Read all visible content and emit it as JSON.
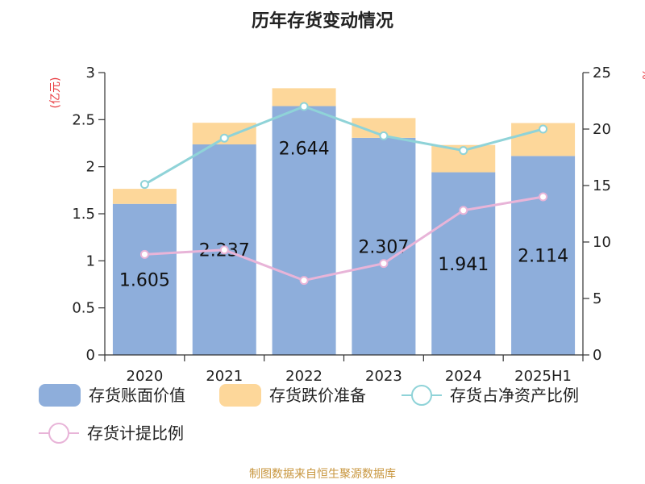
{
  "chart_data": {
    "type": "bar",
    "title": "历年存货变动情况",
    "categories": [
      "2020",
      "2021",
      "2022",
      "2023",
      "2024",
      "2025H1"
    ],
    "y_left_unit": "(亿元)",
    "y_right_unit": "%",
    "ylim_left": [
      0,
      3
    ],
    "ylim_right": [
      0,
      25
    ],
    "yticks_left": [
      "0",
      "0.5",
      "1",
      "1.5",
      "2",
      "2.5",
      "3"
    ],
    "yticks_right": [
      "0",
      "5",
      "10",
      "15",
      "20",
      "25"
    ],
    "series": [
      {
        "name": "存货账面价值",
        "kind": "bar",
        "axis": "left",
        "color": "#8eaedb",
        "values": [
          1.605,
          2.237,
          2.644,
          2.307,
          1.941,
          2.114
        ],
        "labels": [
          "1.605",
          "2.237",
          "2.644",
          "2.307",
          "1.941",
          "2.114"
        ]
      },
      {
        "name": "存货跌价准备",
        "kind": "bar",
        "axis": "left",
        "color": "#fdd79a",
        "values": [
          0.16,
          0.23,
          0.19,
          0.21,
          0.29,
          0.35
        ]
      },
      {
        "name": "存货占净资产比例",
        "kind": "line",
        "axis": "right",
        "color": "#8fd3d8",
        "values": [
          15.1,
          19.2,
          22.0,
          19.4,
          18.1,
          20.0
        ]
      },
      {
        "name": "存货计提比例",
        "kind": "line",
        "axis": "right",
        "color": "#e8b4d8",
        "values": [
          8.9,
          9.3,
          6.6,
          8.1,
          12.8,
          14.0
        ]
      }
    ],
    "grid": false,
    "legend_position": "bottom"
  },
  "source": "制图数据来自恒生聚源数据库"
}
